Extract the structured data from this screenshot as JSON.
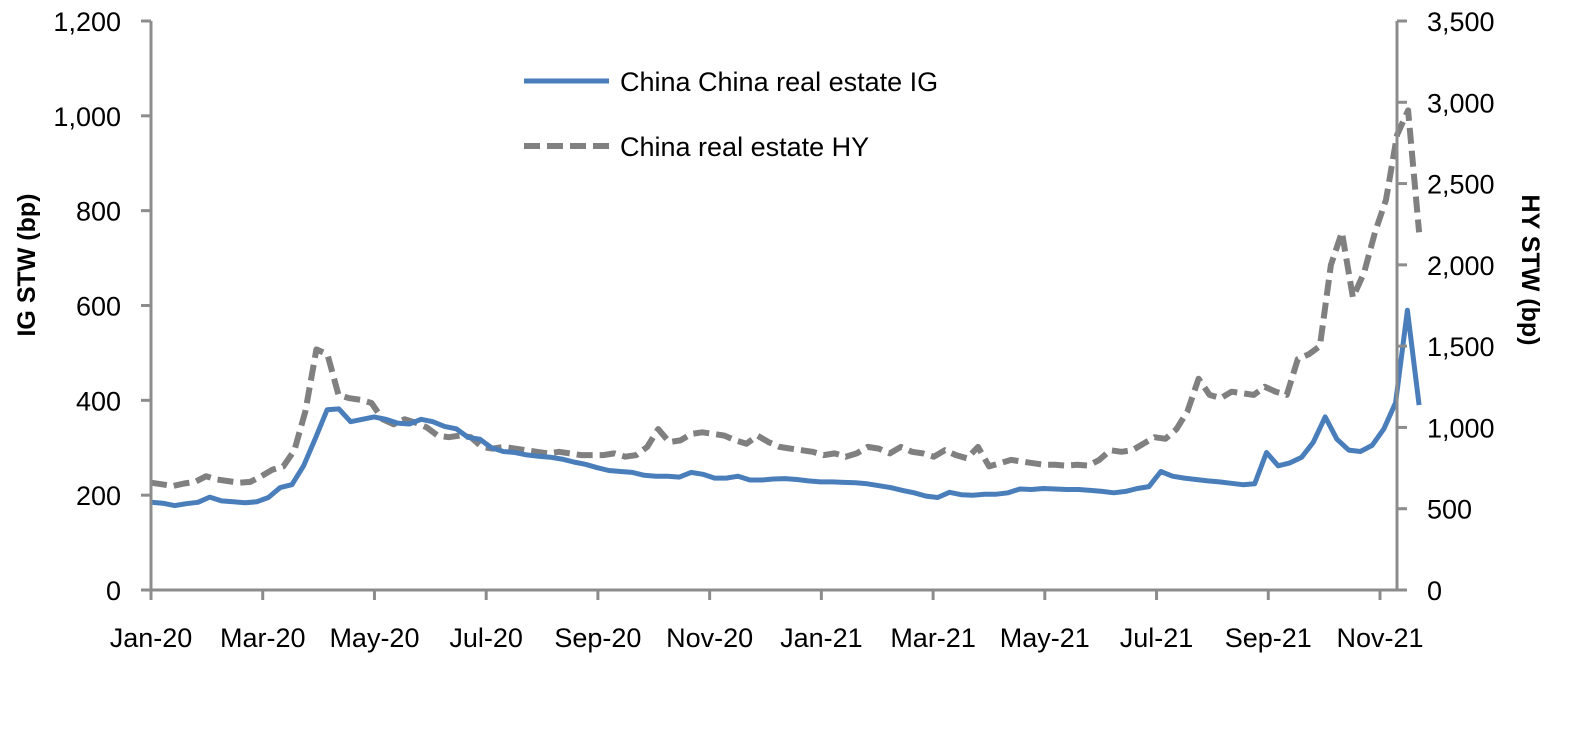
{
  "chart_data": {
    "type": "line",
    "title": "",
    "xlabel": "",
    "ylabel": "IG STW (bp)",
    "y2label": "HY STW (bp)",
    "ylim": [
      0,
      1200
    ],
    "y2lim": [
      0,
      3500
    ],
    "grid": false,
    "legend_position": "top-center",
    "x_tick_labels": [
      "Jan-20",
      "Mar-20",
      "May-20",
      "Jul-20",
      "Sep-20",
      "Nov-20",
      "Jan-21",
      "Mar-21",
      "May-21",
      "Jul-21",
      "Sep-21",
      "Nov-21"
    ],
    "y_tick_labels": [
      "0",
      "200",
      "400",
      "600",
      "800",
      "1,000",
      "1,200"
    ],
    "y_ticks": [
      0,
      200,
      400,
      600,
      800,
      1000,
      1200
    ],
    "y2_tick_labels": [
      "0",
      "500",
      "1,000",
      "1,500",
      "2,000",
      "2,500",
      "3,000",
      "3,500"
    ],
    "y2_ticks": [
      0,
      500,
      1000,
      1500,
      2000,
      2500,
      3000,
      3500
    ],
    "x_start_month": 0,
    "x_end_month": 22.7,
    "series": [
      {
        "name": "China China real estate IG",
        "axis": "left",
        "color": "#4a7ebb",
        "style": "solid",
        "values": [
          185,
          183,
          178,
          182,
          185,
          196,
          188,
          186,
          184,
          186,
          195,
          216,
          222,
          262,
          320,
          380,
          382,
          355,
          360,
          365,
          360,
          352,
          350,
          360,
          355,
          345,
          340,
          322,
          318,
          300,
          292,
          290,
          285,
          282,
          280,
          276,
          270,
          265,
          258,
          252,
          250,
          248,
          242,
          240,
          240,
          238,
          248,
          244,
          236,
          236,
          240,
          232,
          232,
          234,
          235,
          233,
          230,
          228,
          228,
          227,
          226,
          224,
          220,
          216,
          210,
          205,
          198,
          195,
          206,
          201,
          200,
          202,
          202,
          205,
          213,
          212,
          214,
          213,
          212,
          212,
          210,
          208,
          205,
          208,
          214,
          218,
          250,
          240,
          236,
          233,
          230,
          228,
          225,
          222,
          224,
          290,
          262,
          268,
          280,
          312,
          365,
          318,
          295,
          292,
          305,
          340,
          395,
          590,
          390
        ]
      },
      {
        "name": "China real estate HY",
        "axis": "right",
        "color": "#808080",
        "style": "dashed",
        "values": [
          660,
          650,
          640,
          655,
          665,
          700,
          680,
          670,
          660,
          665,
          700,
          740,
          760,
          860,
          1100,
          1480,
          1450,
          1200,
          1180,
          1170,
          1150,
          1050,
          1020,
          1050,
          1030,
          1000,
          950,
          940,
          950,
          940,
          880,
          870,
          880,
          870,
          860,
          850,
          840,
          850,
          840,
          830,
          830,
          830,
          840,
          820,
          830,
          880,
          990,
          910,
          920,
          960,
          970,
          960,
          950,
          920,
          900,
          950,
          910,
          880,
          870,
          860,
          850,
          830,
          840,
          820,
          840,
          880,
          870,
          840,
          880,
          850,
          840,
          820,
          860,
          830,
          810,
          880,
          760,
          780,
          800,
          790,
          780,
          770,
          770,
          765,
          770,
          765,
          800,
          860,
          850,
          860,
          900,
          940,
          930,
          990,
          1100,
          1300,
          1200,
          1180,
          1220,
          1210,
          1200,
          1250,
          1220,
          1200,
          1420,
          1450,
          1500,
          2000,
          2200,
          1800,
          1950,
          2200,
          2400,
          2800,
          2950,
          2200
        ]
      }
    ]
  }
}
